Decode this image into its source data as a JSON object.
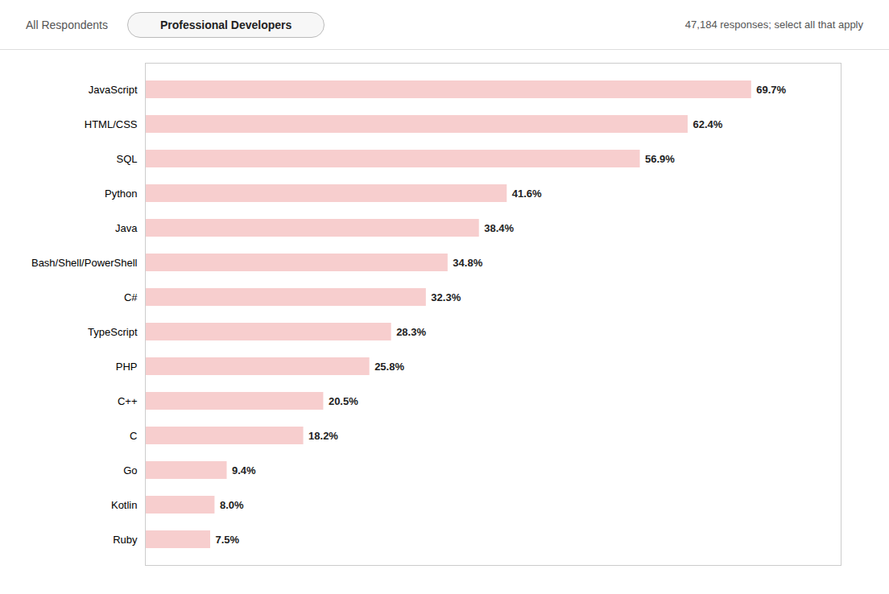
{
  "chart_data": {
    "type": "bar",
    "orientation": "horizontal",
    "title": "Professional Developers",
    "subtitle": "47,184 responses; select all that apply",
    "annotations": [
      "All Respondents"
    ],
    "categories": [
      "JavaScript",
      "HTML/CSS",
      "SQL",
      "Python",
      "Java",
      "Bash/Shell/PowerShell",
      "C#",
      "TypeScript",
      "PHP",
      "C++",
      "C",
      "Go",
      "Kotlin",
      "Ruby"
    ],
    "values": [
      69.7,
      62.4,
      56.9,
      41.6,
      38.4,
      34.8,
      32.3,
      28.3,
      25.8,
      20.5,
      18.2,
      9.4,
      8.0,
      7.5
    ],
    "value_labels": [
      "69.7%",
      "62.4%",
      "56.9%",
      "41.6%",
      "38.4%",
      "34.8%",
      "32.3%",
      "28.3%",
      "25.8%",
      "20.5%",
      "18.2%",
      "9.4%",
      "8.0%",
      "7.5%"
    ],
    "data_labels": true,
    "color": "#f7cece",
    "xlim": [
      0,
      80
    ],
    "tick_labels": "y",
    "grid": false
  }
}
